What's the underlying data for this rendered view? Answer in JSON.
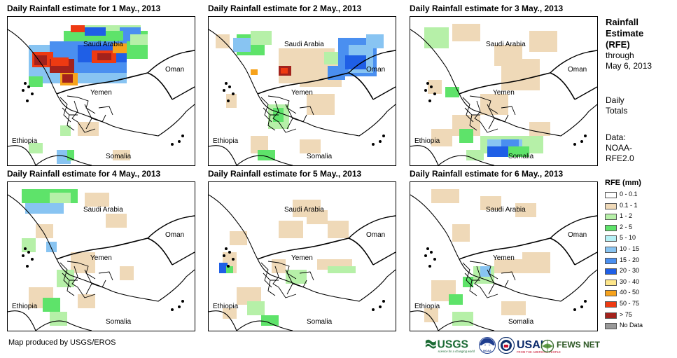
{
  "panels": [
    {
      "title": "Daily Rainfall estimate for 1 May., 2013",
      "label_saudi": "Saudi Arabia",
      "label_oman": "Oman",
      "label_yemen": "Yemen",
      "label_ethiopia": "Ethiopia",
      "label_somalia": "Somalia"
    },
    {
      "title": "Daily Rainfall estimate for 2 May., 2013",
      "label_saudi": "Saudi Arabia",
      "label_oman": "Oman",
      "label_yemen": "Yemen",
      "label_ethiopia": "Ethiopia",
      "label_somalia": "Somalia"
    },
    {
      "title": "Daily Rainfall estimate for 3 May., 2013",
      "label_saudi": "Saudi Arabia",
      "label_oman": "Oman",
      "label_yemen": "Yemen",
      "label_ethiopia": "Ethiopia",
      "label_somalia": "Somalia"
    },
    {
      "title": "Daily Rainfall estimate for 4 May., 2013",
      "label_saudi": "Saudi Arabia",
      "label_oman": "Oman",
      "label_yemen": "Yemen",
      "label_ethiopia": "Ethiopia",
      "label_somalia": "Somalia"
    },
    {
      "title": "Daily Rainfall estimate for 5 May., 2013",
      "label_saudi": "Saudi Arabia",
      "label_oman": "Oman",
      "label_yemen": "Yemen",
      "label_ethiopia": "Ethiopia",
      "label_somalia": "Somalia"
    },
    {
      "title": "Daily Rainfall estimate for 6 May., 2013",
      "label_saudi": "Saudi Arabia",
      "label_oman": "Oman",
      "label_yemen": "Yemen",
      "label_ethiopia": "Ethiopia",
      "label_somalia": "Somalia"
    }
  ],
  "sidebar": {
    "title_line1": "Rainfall",
    "title_line2": "Estimate",
    "title_line3": "(RFE)",
    "through": "through",
    "date": "May 6, 2013",
    "daily_line1": "Daily",
    "daily_line2": "Totals",
    "data_line1": "Data:",
    "data_line2": "NOAA-",
    "data_line3": "RFE2.0"
  },
  "legend": {
    "title": "RFE (mm)",
    "items": [
      {
        "label": "0 - 0.1",
        "color": "#ffffff"
      },
      {
        "label": "0.1 - 1",
        "color": "#efd9b8"
      },
      {
        "label": "1 - 2",
        "color": "#b6f0a8"
      },
      {
        "label": "2 - 5",
        "color": "#5ee36a"
      },
      {
        "label": "5 - 10",
        "color": "#b5f0f5"
      },
      {
        "label": "10 - 15",
        "color": "#88c4f2"
      },
      {
        "label": "15 - 20",
        "color": "#4a8ff0"
      },
      {
        "label": "20 - 30",
        "color": "#1f5fe6"
      },
      {
        "label": "30 - 40",
        "color": "#fde68a"
      },
      {
        "label": "40 - 50",
        "color": "#f6a21b"
      },
      {
        "label": "50 - 75",
        "color": "#ee3a12"
      },
      {
        "label": "> 75",
        "color": "#a3221c"
      },
      {
        "label": "No Data",
        "color": "#999999"
      }
    ]
  },
  "credit": "Map produced by USGS/EROS",
  "logos": {
    "usgs": "USGS",
    "usgs_tagline": "science for a changing world",
    "noaa": "NOAA",
    "usaid": "USAID",
    "usaid_tagline": "FROM THE AMERICAN PEOPLE",
    "fewsnet": "FEWS NET"
  }
}
